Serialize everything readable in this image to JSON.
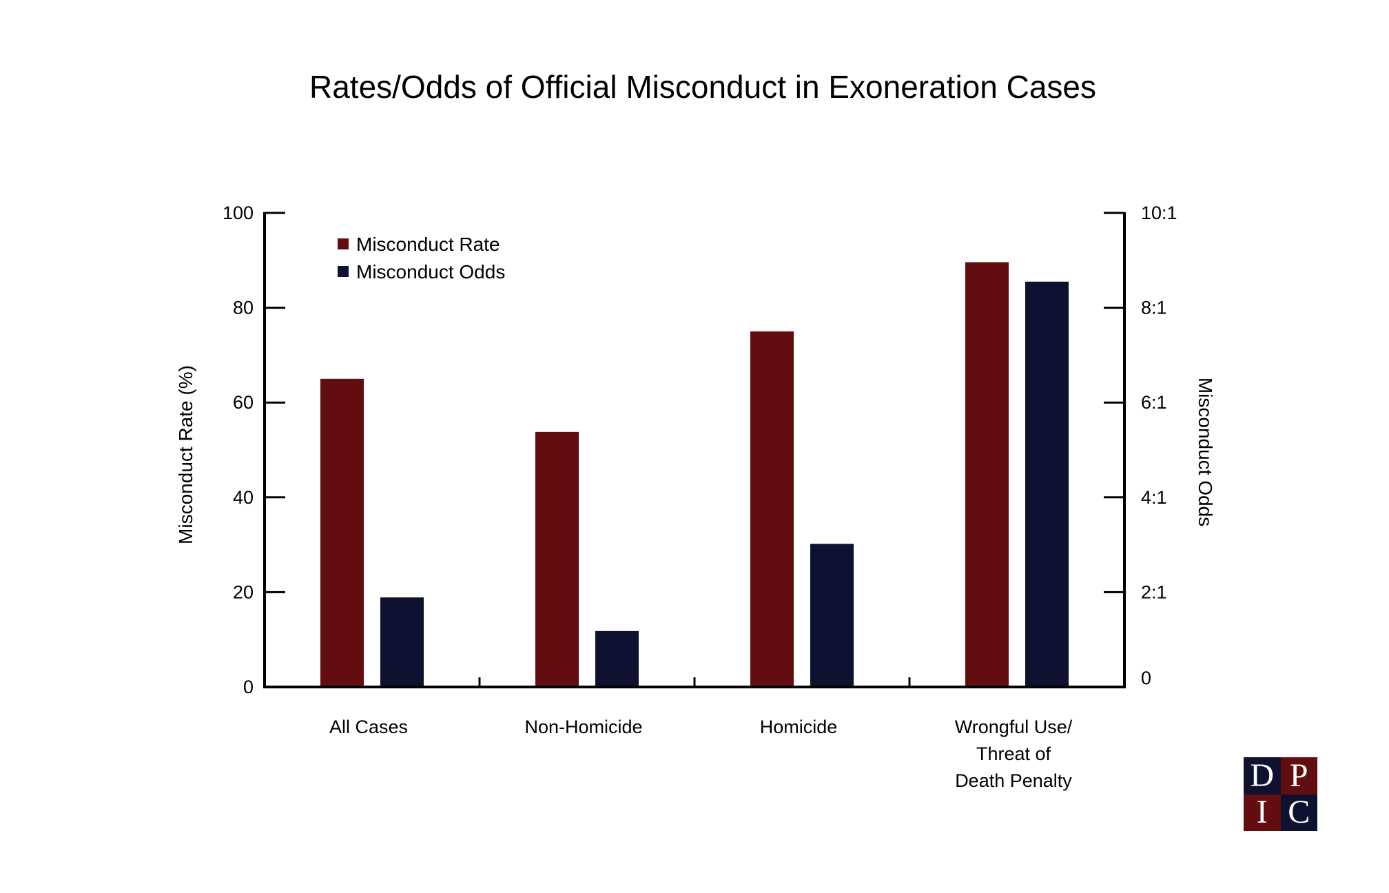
{
  "chart_data": {
    "type": "bar",
    "title": "Rates/Odds of Official Misconduct in Exoneration Cases",
    "categories": [
      [
        "All Cases"
      ],
      [
        "Non-Homicide"
      ],
      [
        "Homicide"
      ],
      [
        "Wrongful Use/",
        "Threat of",
        "Death Penalty"
      ]
    ],
    "series": [
      {
        "name": "Misconduct Rate",
        "axis": "left",
        "color": "#620d10",
        "values": [
          65,
          53.8,
          75,
          89.6
        ]
      },
      {
        "name": "Misconduct Odds",
        "axis": "right",
        "color": "#0e1230",
        "values": [
          1.89,
          1.18,
          3.02,
          8.55
        ]
      }
    ],
    "left_axis": {
      "label": "Misconduct Rate (%)",
      "range": [
        0,
        100
      ],
      "ticks": [
        0,
        20,
        40,
        60,
        80,
        100
      ],
      "tick_labels": [
        "0",
        "20",
        "40",
        "60",
        "80",
        "100"
      ]
    },
    "right_axis": {
      "label": "Misconduct Odds",
      "range": [
        0,
        10
      ],
      "ticks": [
        0,
        2,
        4,
        6,
        8,
        10
      ],
      "tick_labels": [
        "0",
        "2:1",
        "4:1",
        "6:1",
        "8:1",
        "10:1"
      ]
    },
    "legend": {
      "placement": "top-left",
      "entries": [
        "Misconduct Rate",
        "Misconduct Odds"
      ]
    },
    "grid": false
  },
  "logo": {
    "letters": [
      "D",
      "P",
      "I",
      "C"
    ],
    "colors": [
      "#0e1230",
      "#620d10",
      "#620d10",
      "#0e1230"
    ]
  }
}
